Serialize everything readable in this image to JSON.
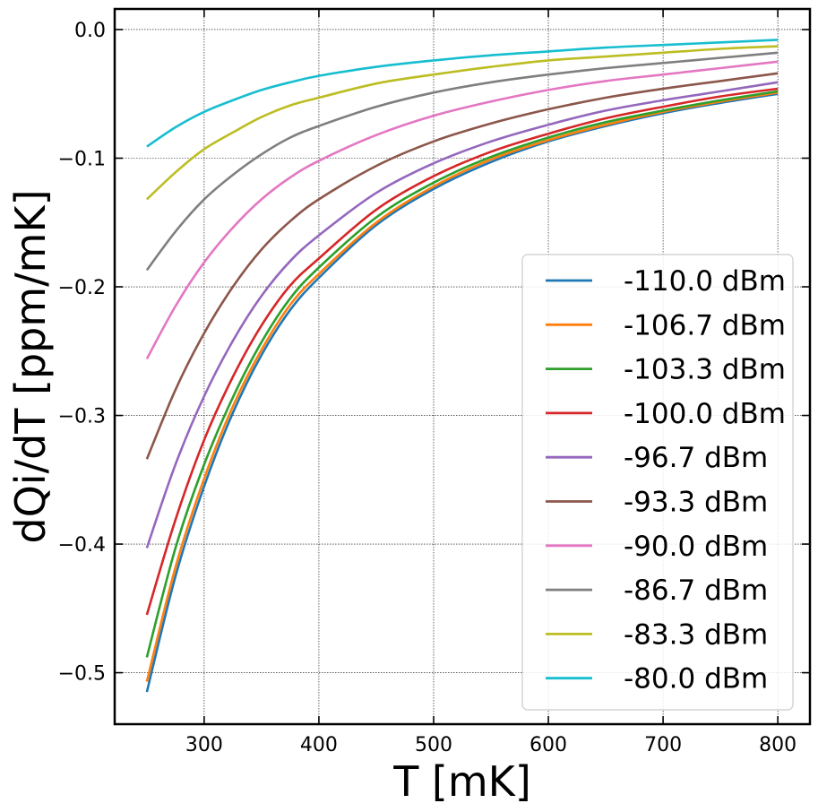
{
  "chart_data": {
    "type": "line",
    "xlabel": "T [mK]",
    "ylabel": "dQi/dT [ppm/mK]",
    "xlim": [
      222,
      828
    ],
    "ylim": [
      -0.54,
      0.016
    ],
    "xticks": [
      300,
      400,
      500,
      600,
      700,
      800
    ],
    "xtick_labels": [
      "300",
      "400",
      "500",
      "600",
      "700",
      "800"
    ],
    "yticks": [
      0.0,
      -0.1,
      -0.2,
      -0.3,
      -0.4,
      -0.5
    ],
    "ytick_labels": [
      "0.0",
      "−0.1",
      "−0.2",
      "−0.3",
      "−0.4",
      "−0.5"
    ],
    "grid": true,
    "legend_position": "lower-right",
    "x": [
      250,
      275,
      300,
      325,
      350,
      375,
      400,
      450,
      500,
      550,
      600,
      650,
      700,
      750,
      800
    ],
    "series": [
      {
        "name": "-110.0 dBm",
        "color": "#1f77b4",
        "values": [
          -0.515,
          -0.425,
          -0.355,
          -0.298,
          -0.253,
          -0.218,
          -0.193,
          -0.152,
          -0.124,
          -0.103,
          -0.087,
          -0.075,
          -0.065,
          -0.057,
          -0.05
        ]
      },
      {
        "name": "-106.7 dBm",
        "color": "#ff7f0e",
        "values": [
          -0.507,
          -0.418,
          -0.349,
          -0.293,
          -0.249,
          -0.214,
          -0.19,
          -0.15,
          -0.122,
          -0.101,
          -0.086,
          -0.074,
          -0.064,
          -0.056,
          -0.049
        ]
      },
      {
        "name": "-103.3 dBm",
        "color": "#2ca02c",
        "values": [
          -0.488,
          -0.403,
          -0.338,
          -0.286,
          -0.243,
          -0.209,
          -0.185,
          -0.146,
          -0.119,
          -0.099,
          -0.084,
          -0.072,
          -0.063,
          -0.055,
          -0.048
        ]
      },
      {
        "name": "-100.0 dBm",
        "color": "#d62728",
        "values": [
          -0.455,
          -0.381,
          -0.319,
          -0.27,
          -0.23,
          -0.199,
          -0.178,
          -0.14,
          -0.114,
          -0.095,
          -0.081,
          -0.069,
          -0.06,
          -0.052,
          -0.046
        ]
      },
      {
        "name": "-96.7 dBm",
        "color": "#9467bd",
        "values": [
          -0.403,
          -0.338,
          -0.285,
          -0.242,
          -0.207,
          -0.18,
          -0.16,
          -0.127,
          -0.104,
          -0.087,
          -0.074,
          -0.063,
          -0.055,
          -0.048,
          -0.041
        ]
      },
      {
        "name": "-93.3 dBm",
        "color": "#8c564b",
        "values": [
          -0.334,
          -0.28,
          -0.236,
          -0.2,
          -0.171,
          -0.149,
          -0.132,
          -0.106,
          -0.087,
          -0.073,
          -0.062,
          -0.053,
          -0.046,
          -0.04,
          -0.034
        ]
      },
      {
        "name": "-90.0 dBm",
        "color": "#e377c2",
        "values": [
          -0.256,
          -0.215,
          -0.181,
          -0.154,
          -0.132,
          -0.115,
          -0.102,
          -0.082,
          -0.067,
          -0.056,
          -0.047,
          -0.04,
          -0.035,
          -0.03,
          -0.025
        ]
      },
      {
        "name": "-86.7 dBm",
        "color": "#7f7f7f",
        "values": [
          -0.187,
          -0.157,
          -0.132,
          -0.113,
          -0.097,
          -0.084,
          -0.075,
          -0.06,
          -0.049,
          -0.041,
          -0.035,
          -0.03,
          -0.026,
          -0.022,
          -0.018
        ]
      },
      {
        "name": "-83.3 dBm",
        "color": "#bcbd22",
        "values": [
          -0.132,
          -0.111,
          -0.093,
          -0.08,
          -0.068,
          -0.059,
          -0.053,
          -0.042,
          -0.035,
          -0.029,
          -0.024,
          -0.021,
          -0.018,
          -0.015,
          -0.013
        ]
      },
      {
        "name": "-80.0 dBm",
        "color": "#17becf",
        "values": [
          -0.091,
          -0.076,
          -0.064,
          -0.055,
          -0.047,
          -0.041,
          -0.036,
          -0.029,
          -0.024,
          -0.02,
          -0.017,
          -0.014,
          -0.012,
          -0.01,
          -0.008
        ]
      }
    ]
  }
}
